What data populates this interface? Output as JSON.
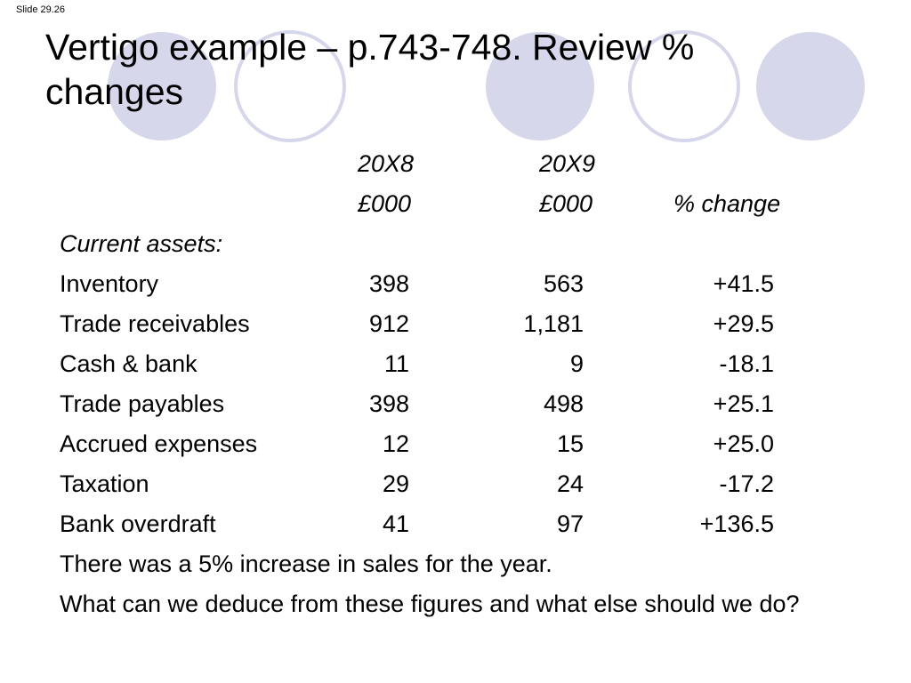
{
  "slide_number": "Slide 29.26",
  "title": "Vertigo example – p.743-748. Review % changes",
  "colors": {
    "circle_fill": "#d7d7ec",
    "circle_stroke": "#d7d7ec"
  },
  "table": {
    "header_row1": [
      "20X8",
      "20X9",
      ""
    ],
    "header_row2": [
      "£000",
      "£000",
      "% change"
    ],
    "section_label": "Current assets:",
    "rows": [
      {
        "label": "Inventory",
        "y20x8": "398",
        "y20x9": "563",
        "change": "+41.5"
      },
      {
        "label": "Trade receivables",
        "y20x8": "912",
        "y20x9": "1,181",
        "change": "+29.5"
      },
      {
        "label": "Cash & bank",
        "y20x8": "11",
        "y20x9": "9",
        "change": "-18.1"
      },
      {
        "label": "Trade payables",
        "y20x8": "398",
        "y20x9": "498",
        "change": "+25.1"
      },
      {
        "label": "Accrued expenses",
        "y20x8": "12",
        "y20x9": "15",
        "change": "+25.0"
      },
      {
        "label": "Taxation",
        "y20x8": "29",
        "y20x9": "24",
        "change": "-17.2"
      },
      {
        "label": "Bank overdraft",
        "y20x8": "41",
        "y20x9": "97",
        "change": "+136.5"
      }
    ]
  },
  "notes": [
    "There was a 5% increase in sales for the year.",
    "What can we deduce from these figures and what else should we do?"
  ]
}
